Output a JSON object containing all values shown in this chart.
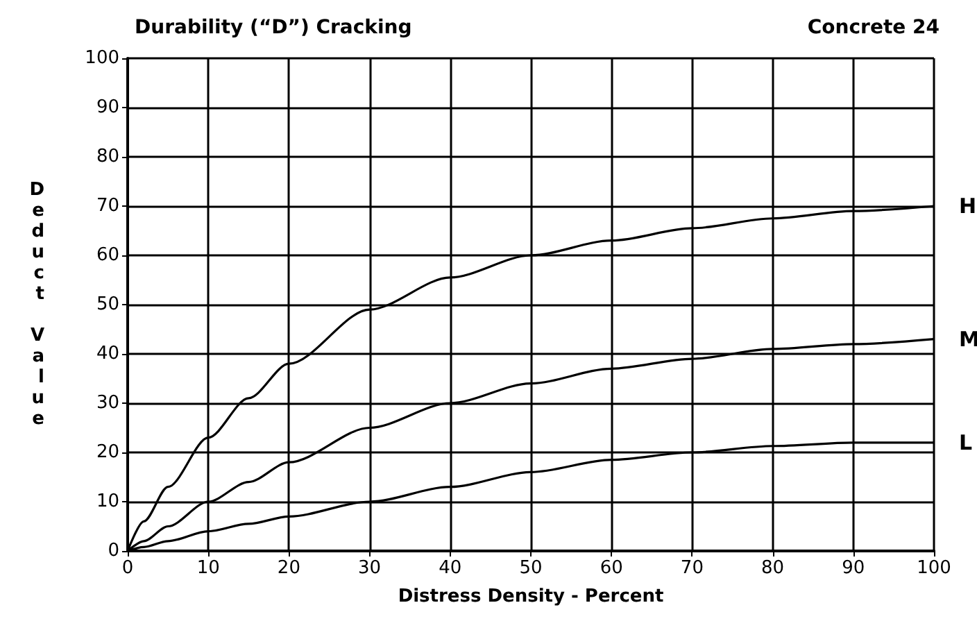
{
  "chart_data": {
    "type": "line",
    "title": "Durability (“D”) Cracking",
    "subtitle": "Concrete 24",
    "xlabel": "Distress Density - Percent",
    "ylabel": "Deduct Value",
    "x": [
      0,
      2,
      5,
      10,
      15,
      20,
      30,
      40,
      50,
      60,
      70,
      80,
      90,
      100
    ],
    "series": [
      {
        "name": "H",
        "color": "#000000",
        "values": [
          0,
          6,
          13,
          23,
          31,
          38,
          49,
          55.5,
          60,
          63,
          65.5,
          67.5,
          69,
          70
        ]
      },
      {
        "name": "M",
        "color": "#000000",
        "values": [
          0,
          2,
          5,
          10,
          14,
          18,
          25,
          30,
          34,
          37,
          39,
          41,
          42,
          43
        ]
      },
      {
        "name": "L",
        "color": "#000000",
        "values": [
          0,
          0.8,
          2,
          4,
          5.5,
          7,
          10,
          13,
          16,
          18.5,
          20,
          21.3,
          22,
          22
        ]
      }
    ],
    "xlim": [
      0,
      100
    ],
    "ylim": [
      0,
      100
    ],
    "xticks": [
      0,
      10,
      20,
      30,
      40,
      50,
      60,
      70,
      80,
      90,
      100
    ],
    "yticks": [
      0,
      10,
      20,
      30,
      40,
      50,
      60,
      70,
      80,
      90,
      100
    ],
    "grid": true,
    "marker": "none",
    "line_style": "solid",
    "legend": false
  }
}
